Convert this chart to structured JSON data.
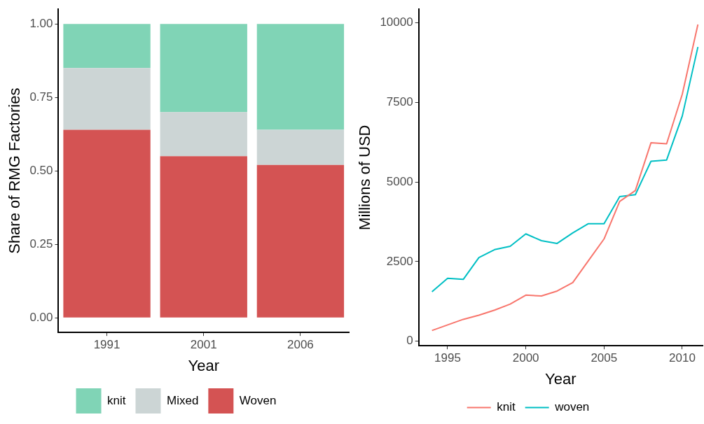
{
  "chart_data": [
    {
      "type": "bar",
      "stacked": true,
      "categories": [
        "1991",
        "2001",
        "2006"
      ],
      "xlabel": "Year",
      "ylabel": "Share of RMG Factories",
      "ylim": [
        -0.05,
        1.05
      ],
      "yticks": [
        {
          "value": 0,
          "label": "0.00"
        },
        {
          "value": 0.25,
          "label": "0.25"
        },
        {
          "value": 0.5,
          "label": "0.50"
        },
        {
          "value": 0.75,
          "label": "0.75"
        },
        {
          "value": 1,
          "label": "1.00"
        }
      ],
      "legend": "bottom",
      "series": [
        {
          "name": "Woven",
          "color": "#d45353",
          "values": [
            0.64,
            0.55,
            0.52
          ]
        },
        {
          "name": "Mixed",
          "color": "#ccd5d5",
          "values": [
            0.21,
            0.15,
            0.12
          ]
        },
        {
          "name": "knit",
          "color": "#80d4b6",
          "values": [
            0.15,
            0.3,
            0.36
          ]
        }
      ]
    },
    {
      "type": "line",
      "marker": "none",
      "x": [
        1994,
        1995,
        1996,
        1997,
        1998,
        1999,
        2000,
        2001,
        2002,
        2003,
        2004,
        2005,
        2006,
        2007,
        2008,
        2009,
        2010,
        2011
      ],
      "xlabel": "Year",
      "ylabel": "Millions of USD",
      "xlim": [
        1993.15,
        2011.3
      ],
      "xticks": [
        1995,
        2000,
        2005,
        2010
      ],
      "ylim": [
        -145,
        10425
      ],
      "yticks": [
        0,
        2500,
        5000,
        7500,
        10000
      ],
      "legend": "bottom",
      "series": [
        {
          "name": "knit",
          "color": "#f8766d",
          "values": [
            335,
            510,
            685,
            815,
            975,
            1165,
            1445,
            1420,
            1575,
            1840,
            2525,
            3210,
            4390,
            4730,
            6230,
            6200,
            7755,
            9945
          ]
        },
        {
          "name": "woven",
          "color": "#00bfc4",
          "values": [
            1550,
            1975,
            1940,
            2625,
            2875,
            2980,
            3370,
            3155,
            3070,
            3400,
            3690,
            3690,
            4540,
            4600,
            5650,
            5690,
            7070,
            9240
          ]
        }
      ]
    }
  ]
}
